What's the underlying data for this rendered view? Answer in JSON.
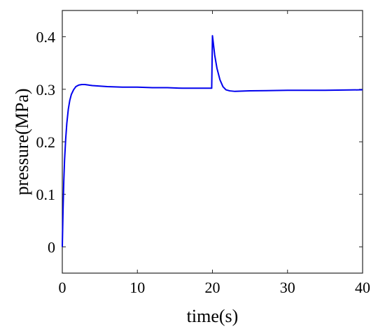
{
  "chart_data": {
    "type": "line",
    "title": "",
    "xlabel": "time(s)",
    "ylabel": "pressure(MPa)",
    "xlim": [
      0,
      40
    ],
    "ylim": [
      -0.05,
      0.45
    ],
    "xticks": [
      0,
      10,
      20,
      30,
      40
    ],
    "yticks": [
      0,
      0.1,
      0.2,
      0.3,
      0.4
    ],
    "grid": false,
    "legend": "none",
    "series": [
      {
        "color": "#0000ee",
        "x": [
          0,
          0.1,
          0.2,
          0.3,
          0.45,
          0.6,
          0.8,
          1.0,
          1.2,
          1.5,
          1.8,
          2.2,
          2.6,
          3.0,
          3.5,
          4.0,
          5.0,
          6.0,
          8.0,
          10.0,
          12.0,
          14.0,
          16.0,
          18.0,
          19.9,
          20.0,
          20.1,
          20.3,
          20.6,
          21.0,
          21.4,
          21.8,
          22.3,
          23.0,
          25.0,
          30.0,
          35.0,
          40.0
        ],
        "y": [
          0.0,
          0.07,
          0.125,
          0.165,
          0.205,
          0.235,
          0.262,
          0.279,
          0.29,
          0.299,
          0.305,
          0.308,
          0.309,
          0.309,
          0.308,
          0.307,
          0.306,
          0.305,
          0.304,
          0.304,
          0.303,
          0.303,
          0.302,
          0.302,
          0.302,
          0.402,
          0.39,
          0.365,
          0.34,
          0.318,
          0.305,
          0.299,
          0.297,
          0.296,
          0.297,
          0.298,
          0.298,
          0.299
        ]
      }
    ]
  }
}
